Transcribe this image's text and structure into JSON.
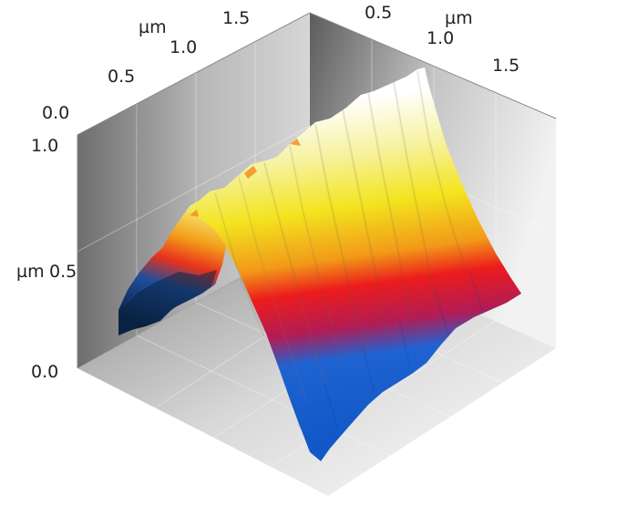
{
  "surface_plot": {
    "unit_label": "µm",
    "left_axis_ticks": [
      "0.0",
      "0.5",
      "1.0",
      "1.5"
    ],
    "right_axis_ticks": [
      "0.5",
      "1.0",
      "1.5"
    ],
    "z_axis_ticks": [
      "0.0",
      "0.5",
      "1.0"
    ],
    "colormap": [
      "#0a2a5c",
      "#1a6fd8",
      "#ee1b1b",
      "#f4e61e",
      "#ffffff"
    ]
  }
}
